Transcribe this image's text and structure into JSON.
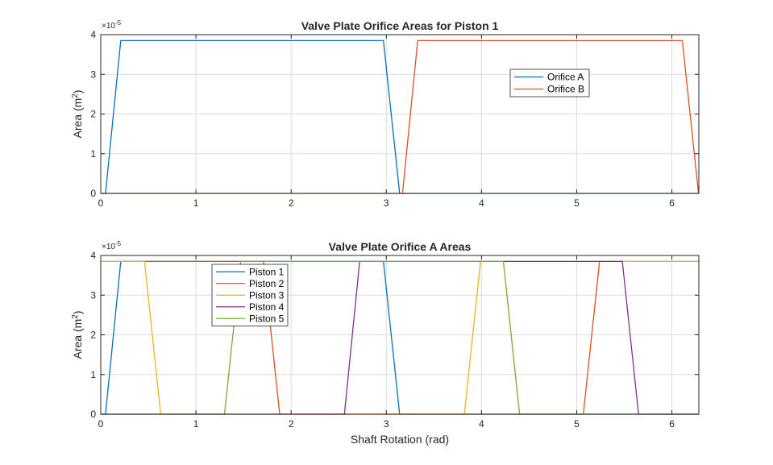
{
  "colors": {
    "blue": "#0072BD",
    "orange": "#D95319",
    "yellow": "#EDB120",
    "purple": "#7E2F8E",
    "green": "#77AC30",
    "grid": "#dcdcdc",
    "axis": "#262626"
  },
  "chart_data": [
    {
      "type": "line",
      "title": "Valve Plate Orifice Areas for Piston 1",
      "xlabel": "",
      "ylabel_main": "Area (m",
      "ylabel_sup": "2",
      "ylabel_end": ")",
      "exponent_base": "×10",
      "exponent_power": "-5",
      "xlim": [
        0,
        6.2832
      ],
      "ylim": [
        0,
        4
      ],
      "xticks": [
        "0",
        "1",
        "2",
        "3",
        "4",
        "5",
        "6"
      ],
      "yticks": [
        "0",
        "1",
        "2",
        "3",
        "4"
      ],
      "grid": true,
      "legend_position": "upper-right (inside)",
      "series": [
        {
          "name": "Orifice A",
          "color": "#0072BD",
          "x": [
            0,
            0.05,
            0.21,
            2.97,
            3.14,
            6.2832
          ],
          "y": [
            0,
            0,
            3.85,
            3.85,
            0,
            0
          ]
        },
        {
          "name": "Orifice B",
          "color": "#D95319",
          "x": [
            0,
            3.17,
            3.33,
            6.11,
            6.28
          ],
          "y": [
            0,
            0,
            3.85,
            3.85,
            0
          ]
        }
      ]
    },
    {
      "type": "line",
      "title": "Valve Plate Orifice A Areas",
      "xlabel": "Shaft Rotation (rad)",
      "ylabel_main": "Area (m",
      "ylabel_sup": "2",
      "ylabel_end": ")",
      "exponent_base": "×10",
      "exponent_power": "-5",
      "xlim": [
        0,
        6.2832
      ],
      "ylim": [
        0,
        4
      ],
      "xticks": [
        "0",
        "1",
        "2",
        "3",
        "4",
        "5",
        "6"
      ],
      "yticks": [
        "0",
        "1",
        "2",
        "3",
        "4"
      ],
      "grid": true,
      "legend_position": "upper-left (inside)",
      "series": [
        {
          "name": "Piston 1",
          "color": "#0072BD",
          "x": [
            0,
            0.05,
            0.21,
            2.97,
            3.14,
            6.2832
          ],
          "y": [
            0,
            0,
            3.85,
            3.85,
            0,
            0
          ]
        },
        {
          "name": "Piston 2",
          "color": "#D95319",
          "x": [
            0,
            1.71,
            1.88,
            5.07,
            5.24,
            6.2832
          ],
          "y": [
            3.85,
            3.85,
            0,
            0,
            3.85,
            3.85
          ]
        },
        {
          "name": "Piston 3",
          "color": "#EDB120",
          "x": [
            0,
            0.46,
            0.63,
            3.82,
            3.99,
            6.2832
          ],
          "y": [
            3.85,
            3.85,
            0,
            0,
            3.85,
            3.85
          ]
        },
        {
          "name": "Piston 4",
          "color": "#7E2F8E",
          "x": [
            0,
            2.56,
            2.72,
            5.48,
            5.65,
            6.2832
          ],
          "y": [
            0,
            0,
            3.85,
            3.85,
            0,
            0
          ]
        },
        {
          "name": "Piston 5",
          "color": "#77AC30",
          "x": [
            0,
            1.3,
            1.47,
            4.23,
            4.4,
            6.2832
          ],
          "y": [
            0,
            0,
            3.85,
            3.85,
            0,
            0
          ]
        }
      ]
    }
  ]
}
